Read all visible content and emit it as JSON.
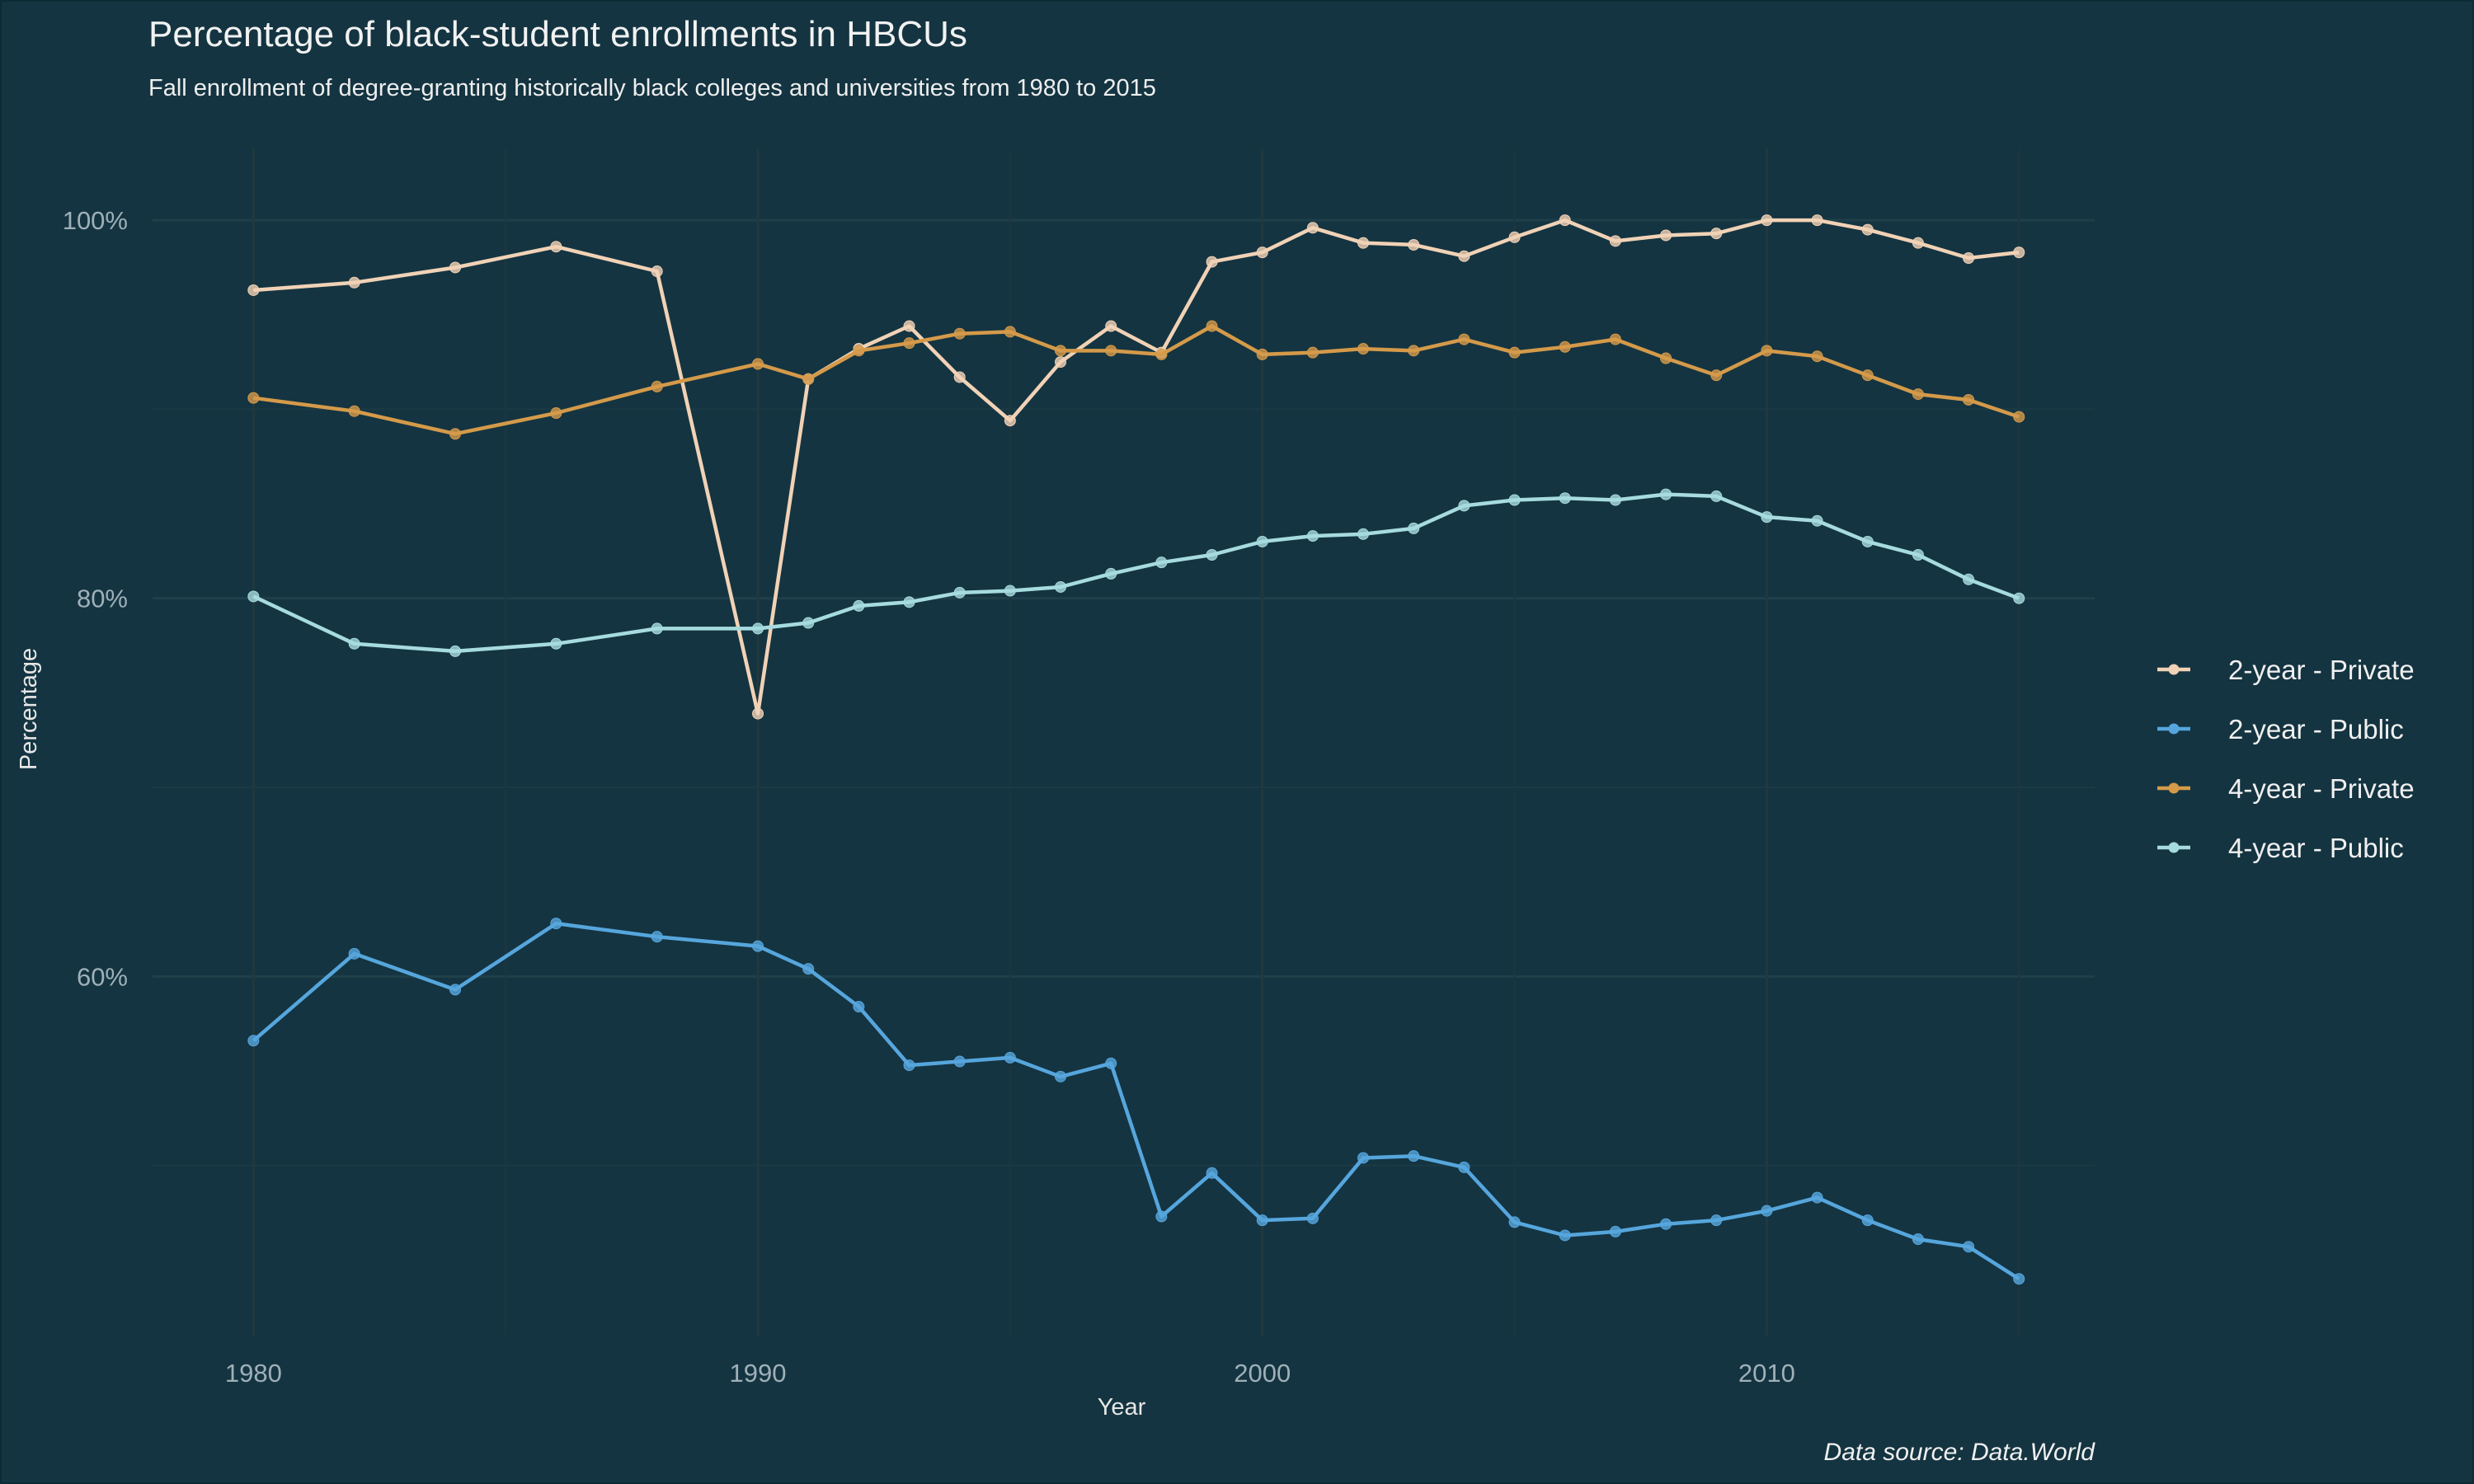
{
  "chart_data": {
    "type": "line",
    "title": "Percentage of black-student enrollments in HBCUs",
    "subtitle": "Fall enrollment of degree-granting historically black colleges and universities from 1980 to 2015",
    "xlabel": "Year",
    "ylabel": "Percentage",
    "caption": "Data source: Data.World",
    "x_ticks": [
      1980,
      1990,
      2000,
      2010
    ],
    "y_ticks": [
      60,
      80,
      100
    ],
    "y_tick_labels": [
      "60%",
      "80%",
      "100%"
    ],
    "xlim": [
      1978,
      2016.5
    ],
    "ylim": [
      41,
      103.8
    ],
    "grid": true,
    "legend_position": "right",
    "background": "#143441",
    "series": [
      {
        "name": "2-year - Private",
        "color": "#f1d2b6",
        "points": [
          [
            1980,
            96.3
          ],
          [
            1982,
            96.7
          ],
          [
            1984,
            97.5
          ],
          [
            1986,
            98.6
          ],
          [
            1988,
            97.3
          ],
          [
            1990,
            73.9
          ],
          [
            1991,
            91.6
          ],
          [
            1992,
            93.2
          ],
          [
            1993,
            94.4
          ],
          [
            1994,
            91.7
          ],
          [
            1995,
            89.4
          ],
          [
            1996,
            92.5
          ],
          [
            1997,
            94.4
          ],
          [
            1998,
            93.0
          ],
          [
            1999,
            97.8
          ],
          [
            2000,
            98.3
          ],
          [
            2001,
            99.6
          ],
          [
            2002,
            98.8
          ],
          [
            2003,
            98.7
          ],
          [
            2004,
            98.1
          ],
          [
            2005,
            99.1
          ],
          [
            2006,
            100.0
          ],
          [
            2007,
            98.9
          ],
          [
            2008,
            99.2
          ],
          [
            2009,
            99.3
          ],
          [
            2010,
            100.0
          ],
          [
            2011,
            100.0
          ],
          [
            2012,
            99.5
          ],
          [
            2013,
            98.8
          ],
          [
            2014,
            98.0
          ],
          [
            2015,
            98.3
          ]
        ]
      },
      {
        "name": "2-year - Public",
        "color": "#56a6dd",
        "points": [
          [
            1980,
            56.6
          ],
          [
            1982,
            61.2
          ],
          [
            1984,
            59.3
          ],
          [
            1986,
            62.8
          ],
          [
            1988,
            62.1
          ],
          [
            1990,
            61.6
          ],
          [
            1991,
            60.4
          ],
          [
            1992,
            58.4
          ],
          [
            1993,
            55.3
          ],
          [
            1994,
            55.5
          ],
          [
            1995,
            55.7
          ],
          [
            1996,
            54.7
          ],
          [
            1997,
            55.4
          ],
          [
            1998,
            47.3
          ],
          [
            1999,
            49.6
          ],
          [
            2000,
            47.1
          ],
          [
            2001,
            47.2
          ],
          [
            2002,
            50.4
          ],
          [
            2003,
            50.5
          ],
          [
            2004,
            49.9
          ],
          [
            2005,
            47.0
          ],
          [
            2006,
            46.3
          ],
          [
            2007,
            46.5
          ],
          [
            2008,
            46.9
          ],
          [
            2009,
            47.1
          ],
          [
            2010,
            47.6
          ],
          [
            2011,
            48.3
          ],
          [
            2012,
            47.1
          ],
          [
            2013,
            46.1
          ],
          [
            2014,
            45.7
          ],
          [
            2015,
            44.0
          ]
        ]
      },
      {
        "name": "4-year - Private",
        "color": "#d49a4a",
        "points": [
          [
            1980,
            90.6
          ],
          [
            1982,
            89.9
          ],
          [
            1984,
            88.7
          ],
          [
            1986,
            89.8
          ],
          [
            1988,
            91.2
          ],
          [
            1990,
            92.4
          ],
          [
            1991,
            91.6
          ],
          [
            1992,
            93.1
          ],
          [
            1993,
            93.5
          ],
          [
            1994,
            94.0
          ],
          [
            1995,
            94.1
          ],
          [
            1996,
            93.1
          ],
          [
            1997,
            93.1
          ],
          [
            1998,
            92.9
          ],
          [
            1999,
            94.4
          ],
          [
            2000,
            92.9
          ],
          [
            2001,
            93.0
          ],
          [
            2002,
            93.2
          ],
          [
            2003,
            93.1
          ],
          [
            2004,
            93.7
          ],
          [
            2005,
            93.0
          ],
          [
            2006,
            93.3
          ],
          [
            2007,
            93.7
          ],
          [
            2008,
            92.7
          ],
          [
            2009,
            91.8
          ],
          [
            2010,
            93.1
          ],
          [
            2011,
            92.8
          ],
          [
            2012,
            91.8
          ],
          [
            2013,
            90.8
          ],
          [
            2014,
            90.5
          ],
          [
            2015,
            89.6
          ]
        ]
      },
      {
        "name": "4-year - Public",
        "color": "#a6dbdf",
        "points": [
          [
            1980,
            80.1
          ],
          [
            1982,
            77.6
          ],
          [
            1984,
            77.2
          ],
          [
            1986,
            77.6
          ],
          [
            1988,
            78.4
          ],
          [
            1990,
            78.4
          ],
          [
            1991,
            78.7
          ],
          [
            1992,
            79.6
          ],
          [
            1993,
            79.8
          ],
          [
            1994,
            80.3
          ],
          [
            1995,
            80.4
          ],
          [
            1996,
            80.6
          ],
          [
            1997,
            81.3
          ],
          [
            1998,
            81.9
          ],
          [
            1999,
            82.3
          ],
          [
            2000,
            83.0
          ],
          [
            2001,
            83.3
          ],
          [
            2002,
            83.4
          ],
          [
            2003,
            83.7
          ],
          [
            2004,
            84.9
          ],
          [
            2005,
            85.2
          ],
          [
            2006,
            85.3
          ],
          [
            2007,
            85.2
          ],
          [
            2008,
            85.5
          ],
          [
            2009,
            85.4
          ],
          [
            2010,
            84.3
          ],
          [
            2011,
            84.1
          ],
          [
            2012,
            83.0
          ],
          [
            2013,
            82.3
          ],
          [
            2014,
            81.0
          ],
          [
            2015,
            80.0
          ]
        ]
      }
    ]
  }
}
